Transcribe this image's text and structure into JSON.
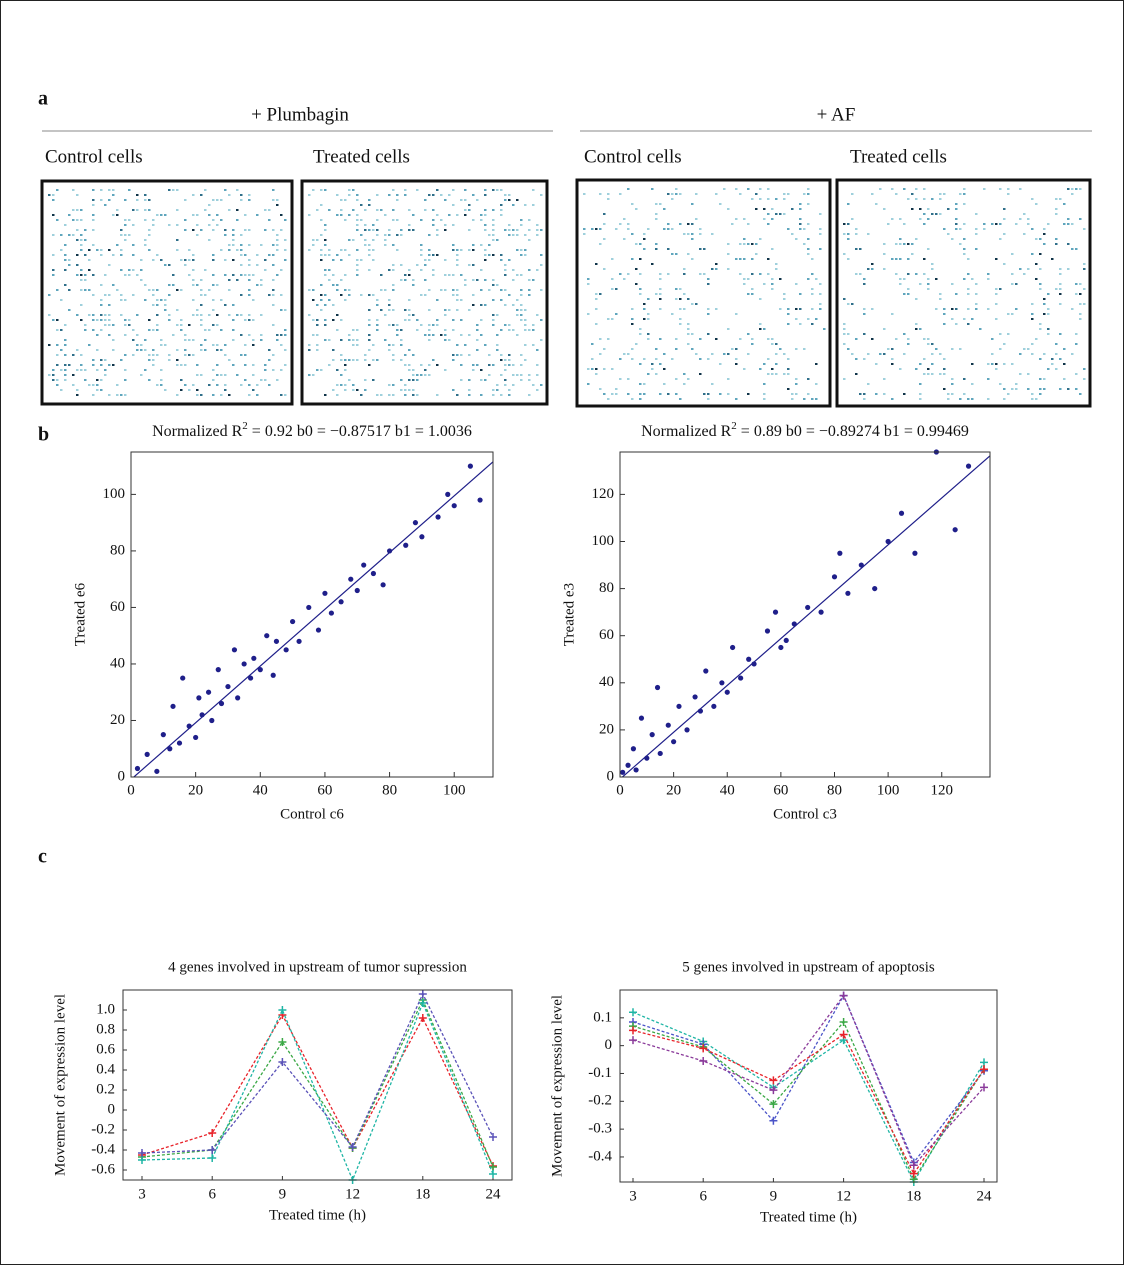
{
  "panel_a": {
    "label": "a",
    "groups": [
      {
        "title": "+ Plumbagin",
        "images": [
          "Control cells",
          "Treated cells"
        ]
      },
      {
        "title": "+ AF",
        "images": [
          "Control cells",
          "Treated cells"
        ]
      }
    ]
  },
  "panel_b_label": "b",
  "panel_c_label": "c",
  "chart_data": [
    {
      "type": "scatter",
      "title": [
        "Normalized R",
        "2",
        " = 0.92  b0 = −0.87517  b1 = 1.0036"
      ],
      "fit": {
        "b0": -0.87517,
        "b1": 1.0036
      },
      "xlabel": "Control c6",
      "ylabel": "Treated e6",
      "xlim": [
        0,
        112
      ],
      "ylim": [
        0,
        115
      ],
      "xticks": [
        0,
        20,
        40,
        60,
        80,
        100
      ],
      "yticks": [
        0,
        20,
        40,
        60,
        80,
        100
      ],
      "color": "#1f1f8a",
      "x": [
        2,
        5,
        8,
        10,
        12,
        13,
        15,
        16,
        18,
        20,
        21,
        22,
        24,
        25,
        27,
        28,
        30,
        32,
        33,
        35,
        37,
        38,
        40,
        42,
        44,
        45,
        48,
        50,
        52,
        55,
        58,
        60,
        62,
        65,
        68,
        70,
        72,
        75,
        78,
        80,
        85,
        88,
        90,
        95,
        98,
        100,
        105,
        108
      ],
      "y": [
        3,
        8,
        2,
        15,
        10,
        25,
        12,
        35,
        18,
        14,
        28,
        22,
        30,
        20,
        38,
        26,
        32,
        45,
        28,
        40,
        35,
        42,
        38,
        50,
        36,
        48,
        45,
        55,
        48,
        60,
        52,
        65,
        58,
        62,
        70,
        66,
        75,
        72,
        68,
        80,
        82,
        90,
        85,
        92,
        100,
        96,
        110,
        98
      ]
    },
    {
      "type": "scatter",
      "title": [
        "Normalized R",
        "2",
        " = 0.89  b0 = −0.89274  b1 = 0.99469"
      ],
      "fit": {
        "b0": -0.89274,
        "b1": 0.99469
      },
      "xlabel": "Control c3",
      "ylabel": "Treated e3",
      "xlim": [
        0,
        138
      ],
      "ylim": [
        0,
        138
      ],
      "xticks": [
        0,
        20,
        40,
        60,
        80,
        100,
        120
      ],
      "yticks": [
        0,
        20,
        40,
        60,
        80,
        100,
        120
      ],
      "color": "#1f1f8a",
      "x": [
        1,
        3,
        5,
        6,
        8,
        10,
        12,
        14,
        15,
        18,
        20,
        22,
        25,
        28,
        30,
        32,
        35,
        38,
        40,
        42,
        45,
        48,
        50,
        55,
        58,
        60,
        62,
        65,
        70,
        75,
        80,
        82,
        85,
        90,
        95,
        100,
        105,
        110,
        118,
        125,
        130
      ],
      "y": [
        2,
        5,
        12,
        3,
        25,
        8,
        18,
        38,
        10,
        22,
        15,
        30,
        20,
        34,
        28,
        45,
        30,
        40,
        36,
        55,
        42,
        50,
        48,
        62,
        70,
        55,
        58,
        65,
        72,
        70,
        85,
        95,
        78,
        90,
        80,
        100,
        112,
        95,
        138,
        105,
        132
      ]
    },
    {
      "type": "line",
      "title": "4 genes involved in upstream of tumor supression",
      "xlabel": "Treated time (h)",
      "ylabel": "Movement of expression level",
      "categories": [
        "3",
        "6",
        "9",
        "12",
        "18",
        "24"
      ],
      "ylim": [
        -0.7,
        1.2
      ],
      "yticks": [
        -0.6,
        -0.4,
        -0.2,
        0,
        0.2,
        0.4,
        0.6,
        0.8,
        {
          "value": 1,
          "label": "1.0"
        }
      ],
      "series": [
        {
          "color": "#e8232a",
          "values": [
            -0.45,
            -0.23,
            0.95,
            -0.38,
            0.92,
            -0.56
          ]
        },
        {
          "color": "#3aa845",
          "values": [
            -0.47,
            -0.4,
            0.68,
            -0.38,
            1.1,
            -0.57
          ]
        },
        {
          "color": "#1fb5a5",
          "values": [
            -0.5,
            -0.48,
            1.0,
            -0.7,
            1.07,
            -0.64
          ]
        },
        {
          "color": "#5a52b8",
          "values": [
            -0.43,
            -0.4,
            0.48,
            -0.37,
            1.16,
            -0.27
          ]
        }
      ]
    },
    {
      "type": "line",
      "title": "5 genes involved in upstream of apoptosis",
      "xlabel": "Treated time (h)",
      "ylabel": "Movement of expression level",
      "categories": [
        "3",
        "6",
        "9",
        "12",
        "18",
        "24"
      ],
      "ylim": [
        -0.49,
        0.2
      ],
      "yticks": [
        -0.4,
        -0.3,
        -0.2,
        -0.1,
        0,
        0.1
      ],
      "series": [
        {
          "color": "#1fb5a5",
          "values": [
            0.12,
            0.015,
            -0.15,
            0.02,
            -0.49,
            -0.06
          ]
        },
        {
          "color": "#4b54c8",
          "values": [
            0.085,
            0.005,
            -0.27,
            0.18,
            -0.42,
            -0.09
          ]
        },
        {
          "color": "#3aa845",
          "values": [
            0.07,
            -0.005,
            -0.21,
            0.085,
            -0.48,
            -0.085
          ]
        },
        {
          "color": "#e8232a",
          "values": [
            0.055,
            -0.01,
            -0.125,
            0.04,
            -0.46,
            -0.085
          ]
        },
        {
          "color": "#8a3a9a",
          "values": [
            0.02,
            -0.055,
            -0.16,
            0.18,
            -0.43,
            -0.15
          ]
        }
      ]
    }
  ]
}
